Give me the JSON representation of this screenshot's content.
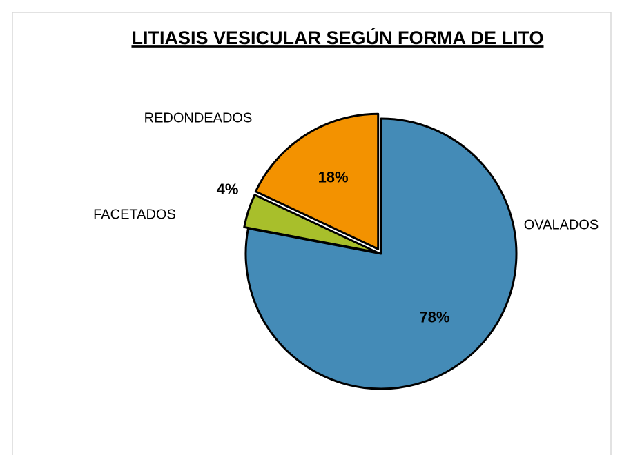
{
  "chart_data": {
    "type": "pie",
    "title": "LITIASIS VESICULAR SEGÚN FORMA DE LITO",
    "categories": [
      "OVALADOS",
      "FACETADOS",
      "REDONDEADOS"
    ],
    "values": [
      78,
      4,
      18
    ],
    "value_labels": [
      "78%",
      "4%",
      "18%"
    ],
    "colors": [
      "#448bb7",
      "#a8bf2b",
      "#f39200"
    ]
  }
}
